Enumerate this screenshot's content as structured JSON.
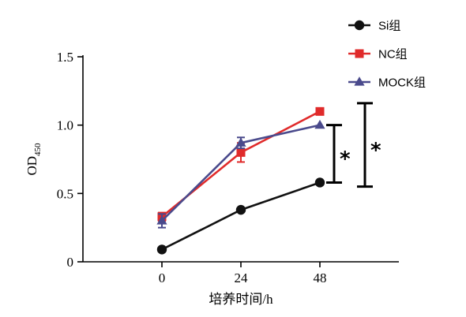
{
  "chart_data": {
    "type": "line",
    "title": "",
    "xlabel": "培养时间/h",
    "ylabel": "OD",
    "ylabel_subscript": "450",
    "x": [
      0,
      24,
      48
    ],
    "xticks": [
      "0",
      "24",
      "48"
    ],
    "xlim": [
      -24,
      72
    ],
    "ylim": [
      0,
      1.5
    ],
    "yticks": [
      "0",
      "0.5",
      "1.0",
      "1.5"
    ],
    "ytick_values": [
      0,
      0.5,
      1.0,
      1.5
    ],
    "grid": false,
    "legend_position": "top-right",
    "series": [
      {
        "name": "Si组",
        "color": "#111111",
        "marker": "circle",
        "values": [
          0.09,
          0.38,
          0.58
        ],
        "errors": [
          0.01,
          0.01,
          0.01
        ]
      },
      {
        "name": "NC组",
        "color": "#e02b2b",
        "marker": "square",
        "values": [
          0.33,
          0.8,
          1.1
        ],
        "errors": [
          0.03,
          0.07,
          0.01
        ]
      },
      {
        "name": "MOCK组",
        "color": "#4a4a8c",
        "marker": "triangle",
        "values": [
          0.3,
          0.87,
          1.0
        ],
        "errors": [
          0.05,
          0.04,
          0.01
        ]
      }
    ],
    "annotations": [
      {
        "label": "*",
        "from": 0.58,
        "to": 1.0
      },
      {
        "label": "*",
        "from": 0.55,
        "to": 1.16
      }
    ]
  }
}
